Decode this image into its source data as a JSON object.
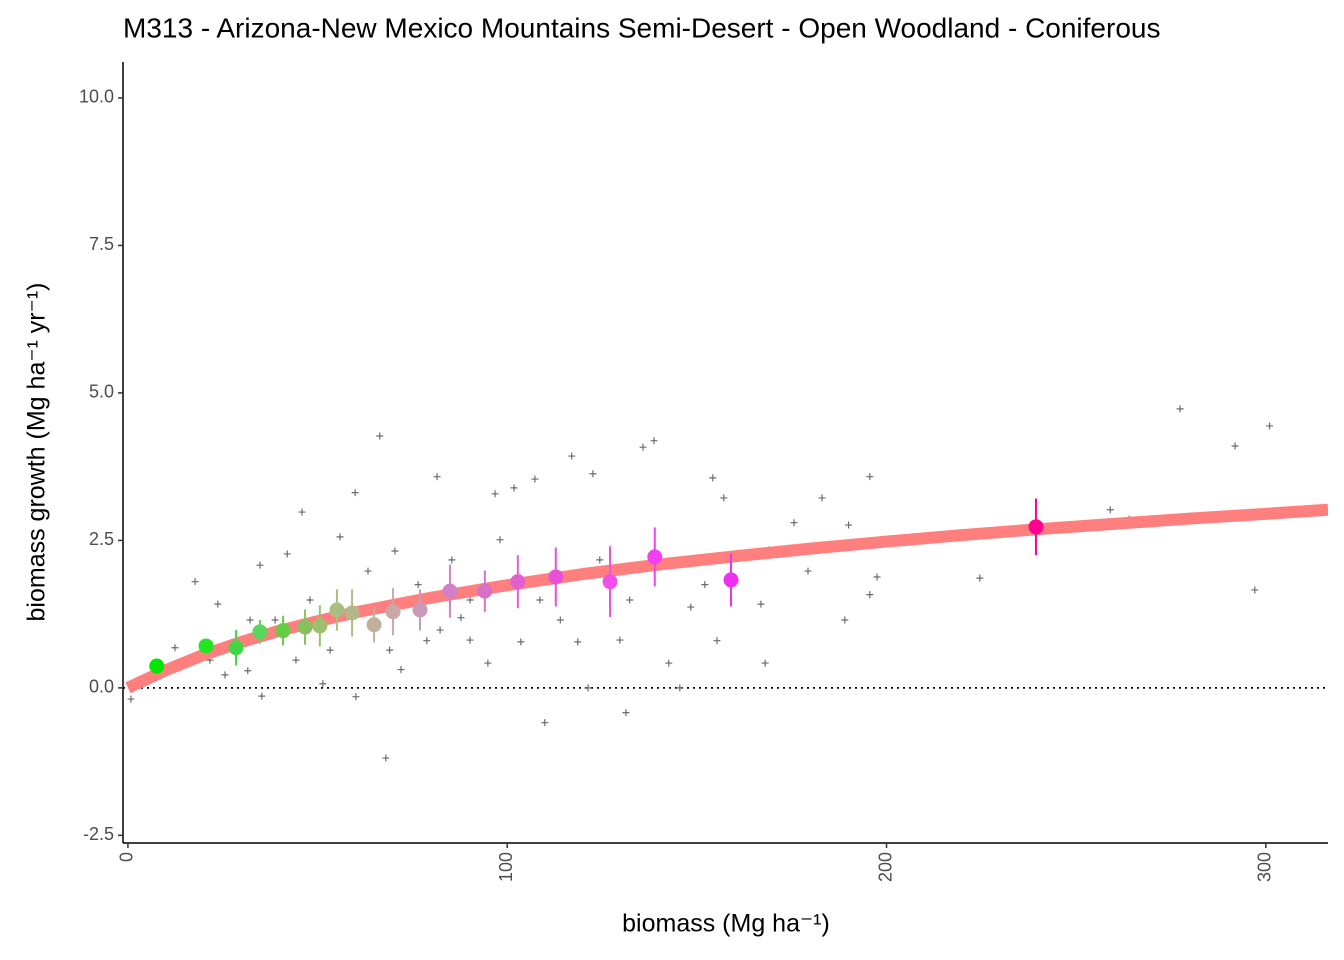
{
  "chart_data": {
    "type": "scatter",
    "title": "M313 - Arizona-New Mexico Mountains Semi-Desert - Open Woodland - Coniferous",
    "xlabel": "biomass (Mg ha⁻¹)",
    "ylabel": "biomass growth (Mg ha⁻¹ yr⁻¹)",
    "xlim": [
      -1.3,
      316.4
    ],
    "ylim": [
      -2.63,
      10.61
    ],
    "xticks": [
      0,
      100,
      200,
      300
    ],
    "yticks": [
      {
        "value": -2.5,
        "label": "-2.5"
      },
      {
        "value": 0,
        "label": "0.0"
      },
      {
        "value": 2.5,
        "label": "2.5"
      },
      {
        "value": 5,
        "label": "5.0"
      },
      {
        "value": 7.5,
        "label": "7.5"
      },
      {
        "value": 10,
        "label": "10.0"
      }
    ],
    "reference_line": 0,
    "series": [
      {
        "type": "scatter",
        "marker": "+",
        "color": "#6b6b6b",
        "x": [
          66.4,
          68.0,
          277.4,
          301.0,
          291.9,
          297.1,
          259.0,
          264.0,
          224.6,
          195.6,
          197.5,
          195.6,
          189.0,
          190.0,
          183.0,
          175.6,
          109.9,
          131.3,
          138.7,
          135.8,
          117.0,
          154.2,
          157.1,
          166.9,
          168.0,
          169.0,
          179.3,
          81.5,
          45.9,
          59.9,
          96.8,
          101.8,
          107.3,
          122.6,
          87.8,
          94.9,
          103.6,
          118.6,
          121.3,
          145.5,
          142.6,
          155.3,
          152.1,
          148.4,
          60.1,
          35.3,
          0.8,
          17.7,
          23.7,
          34.8,
          42.0,
          55.9,
          63.3,
          70.4,
          76.5,
          78.8,
          72.0,
          51.4,
          44.3,
          31.6,
          13.7,
          12.4,
          25.6,
          48.0,
          38.8,
          53.3,
          62.5,
          85.4,
          90.2,
          98.1,
          108.6,
          114.0,
          124.4,
          132.3,
          129.7,
          90.2,
          82.3,
          69.0,
          32.2,
          21.6,
          5.8
        ],
        "values": [
          4.27,
          -1.19,
          4.73,
          4.44,
          4.1,
          1.66,
          3.02,
          2.86,
          1.86,
          3.58,
          1.88,
          1.58,
          1.15,
          2.76,
          3.22,
          2.8,
          -0.59,
          -0.42,
          4.19,
          4.08,
          3.93,
          3.56,
          3.22,
          1.42,
          0.42,
          2.34,
          1.98,
          3.58,
          2.98,
          3.31,
          3.29,
          3.39,
          3.54,
          3.63,
          1.19,
          0.42,
          0.78,
          0.78,
          0,
          0,
          0.42,
          0.8,
          1.75,
          1.37,
          -0.15,
          -0.14,
          -0.19,
          1.8,
          1.42,
          2.08,
          2.27,
          2.56,
          1.98,
          2.32,
          1.75,
          0.8,
          0.31,
          0.07,
          0.47,
          0.29,
          0.34,
          0.68,
          0.22,
          1.49,
          1.15,
          0.64,
          1.32,
          2.17,
          1.49,
          2.51,
          1.49,
          1.15,
          2.17,
          1.49,
          0.81,
          0.81,
          0.98,
          0.64,
          1.15,
          0.47,
          0.14
        ]
      },
      {
        "type": "line",
        "color": "#ff7f7f",
        "x": [
          0,
          10,
          20,
          30,
          40,
          50,
          60,
          80,
          100,
          120,
          140,
          160,
          180,
          200,
          220,
          240,
          260,
          280,
          300,
          316.4
        ],
        "values": [
          0,
          0.3,
          0.56,
          0.78,
          0.97,
          1.13,
          1.28,
          1.53,
          1.74,
          1.93,
          2.09,
          2.23,
          2.36,
          2.48,
          2.59,
          2.69,
          2.78,
          2.87,
          2.95,
          3.02
        ]
      },
      {
        "type": "errorbar",
        "x": [
          7.6,
          20.6,
          28.5,
          34.8,
          40.9,
          46.7,
          50.6,
          55.1,
          59.1,
          64.9,
          69.9,
          77.0,
          84.9,
          94.1,
          102.8,
          112.8,
          127.1,
          138.9,
          159.0,
          239.4
        ],
        "values": [
          0.37,
          0.71,
          0.68,
          0.95,
          0.97,
          1.03,
          1.05,
          1.32,
          1.27,
          1.07,
          1.29,
          1.32,
          1.64,
          1.64,
          1.8,
          1.88,
          1.8,
          2.22,
          1.83,
          2.73
        ],
        "errors": [
          0.05,
          0.1,
          0.3,
          0.2,
          0.25,
          0.3,
          0.35,
          0.35,
          0.4,
          0.3,
          0.4,
          0.35,
          0.45,
          0.35,
          0.45,
          0.5,
          0.6,
          0.5,
          0.45,
          0.48
        ],
        "colors": [
          "#00e600",
          "#22e622",
          "#44d644",
          "#5ad65a",
          "#66cc44",
          "#88c060",
          "#9cc070",
          "#a8bf80",
          "#b2b888",
          "#c2b09a",
          "#c8a8a8",
          "#c89ab8",
          "#d080c8",
          "#d870c8",
          "#e060d0",
          "#e850d8",
          "#f050e8",
          "#f040f0",
          "#f030f0",
          "#ff0090"
        ]
      }
    ]
  }
}
